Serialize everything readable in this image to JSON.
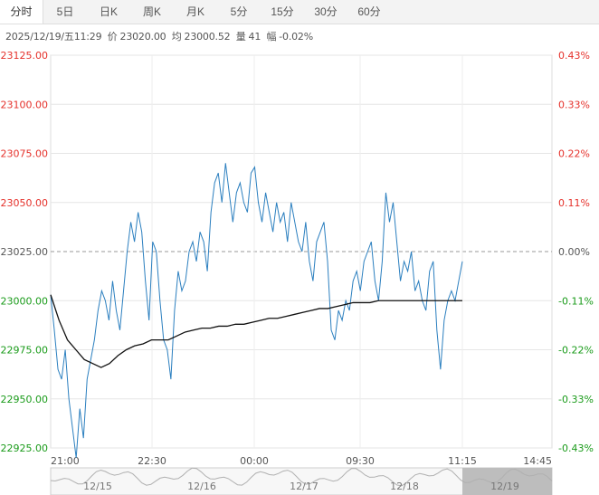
{
  "tabs": [
    {
      "label": "分时",
      "active": true
    },
    {
      "label": "5日",
      "active": false
    },
    {
      "label": "日K",
      "active": false
    },
    {
      "label": "周K",
      "active": false
    },
    {
      "label": "月K",
      "active": false
    },
    {
      "label": "5分",
      "active": false
    },
    {
      "label": "15分",
      "active": false
    },
    {
      "label": "30分",
      "active": false
    },
    {
      "label": "60分",
      "active": false
    }
  ],
  "info": {
    "datetime": "2025/12/19/五11:29",
    "price_label": "价",
    "price": "23020.00",
    "avg_label": "均",
    "avg": "23000.52",
    "volume_label": "量",
    "volume": "41",
    "change_label": "幅",
    "change": "-0.02%"
  },
  "colors": {
    "up": "#e5302a",
    "down": "#1a9b1a",
    "price_line": "#2b7fbf",
    "avg_line": "#111111",
    "axis_text": "#555555"
  },
  "chart_data": {
    "type": "line",
    "prev_close": 23025.0,
    "ylim": [
      22920,
      23130
    ],
    "left_ticks": [
      "23125.00",
      "23100.00",
      "23075.00",
      "23050.00",
      "23025.00",
      "23000.00",
      "22975.00",
      "22950.00",
      "22925.00"
    ],
    "right_ticks": [
      "0.43%",
      "0.33%",
      "0.22%",
      "0.11%",
      "0.00%",
      "-0.11%",
      "-0.22%",
      "-0.33%",
      "-0.43%"
    ],
    "x_ticks": [
      "21:00",
      "22:30",
      "00:00",
      "09:30",
      "11:15",
      "14:45"
    ],
    "nav_dates": [
      "12/15",
      "12/16",
      "12/17",
      "12/18",
      "12/19"
    ],
    "series": [
      {
        "name": "price",
        "values": [
          23003,
          22985,
          22965,
          22960,
          22975,
          22950,
          22935,
          22920,
          22945,
          22930,
          22960,
          22970,
          22980,
          22995,
          23005,
          23000,
          22990,
          23010,
          22995,
          22985,
          23005,
          23025,
          23040,
          23030,
          23045,
          23035,
          23010,
          22990,
          23030,
          23025,
          23000,
          22980,
          22975,
          22960,
          22995,
          23015,
          23005,
          23010,
          23025,
          23030,
          23020,
          23035,
          23030,
          23015,
          23045,
          23060,
          23065,
          23050,
          23070,
          23055,
          23040,
          23055,
          23060,
          23050,
          23045,
          23065,
          23068,
          23050,
          23040,
          23055,
          23045,
          23035,
          23050,
          23040,
          23045,
          23030,
          23050,
          23040,
          23030,
          23025,
          23040,
          23020,
          23010,
          23030,
          23035,
          23040,
          23020,
          22985,
          22980,
          22995,
          22990,
          23000,
          22995,
          23010,
          23015,
          23005,
          23020,
          23025,
          23030,
          23010,
          23000,
          23020,
          23055,
          23040,
          23050,
          23030,
          23010,
          23020,
          23015,
          23025,
          23005,
          23010,
          23000,
          22995,
          23015,
          23020,
          22985,
          22965,
          22990,
          23000,
          23005,
          23000,
          23010,
          23020
        ]
      },
      {
        "name": "avg",
        "values": [
          23003,
          22990,
          22980,
          22975,
          22970,
          22968,
          22966,
          22968,
          22972,
          22975,
          22977,
          22978,
          22980,
          22980,
          22980,
          22982,
          22984,
          22985,
          22986,
          22986,
          22987,
          22987,
          22988,
          22988,
          22989,
          22990,
          22991,
          22991,
          22992,
          22993,
          22994,
          22995,
          22996,
          22996,
          22997,
          22998,
          22999,
          22999,
          22999,
          23000,
          23000,
          23000,
          23000,
          23000,
          23000,
          23000,
          23000,
          23000,
          23000,
          23000
        ]
      }
    ]
  }
}
